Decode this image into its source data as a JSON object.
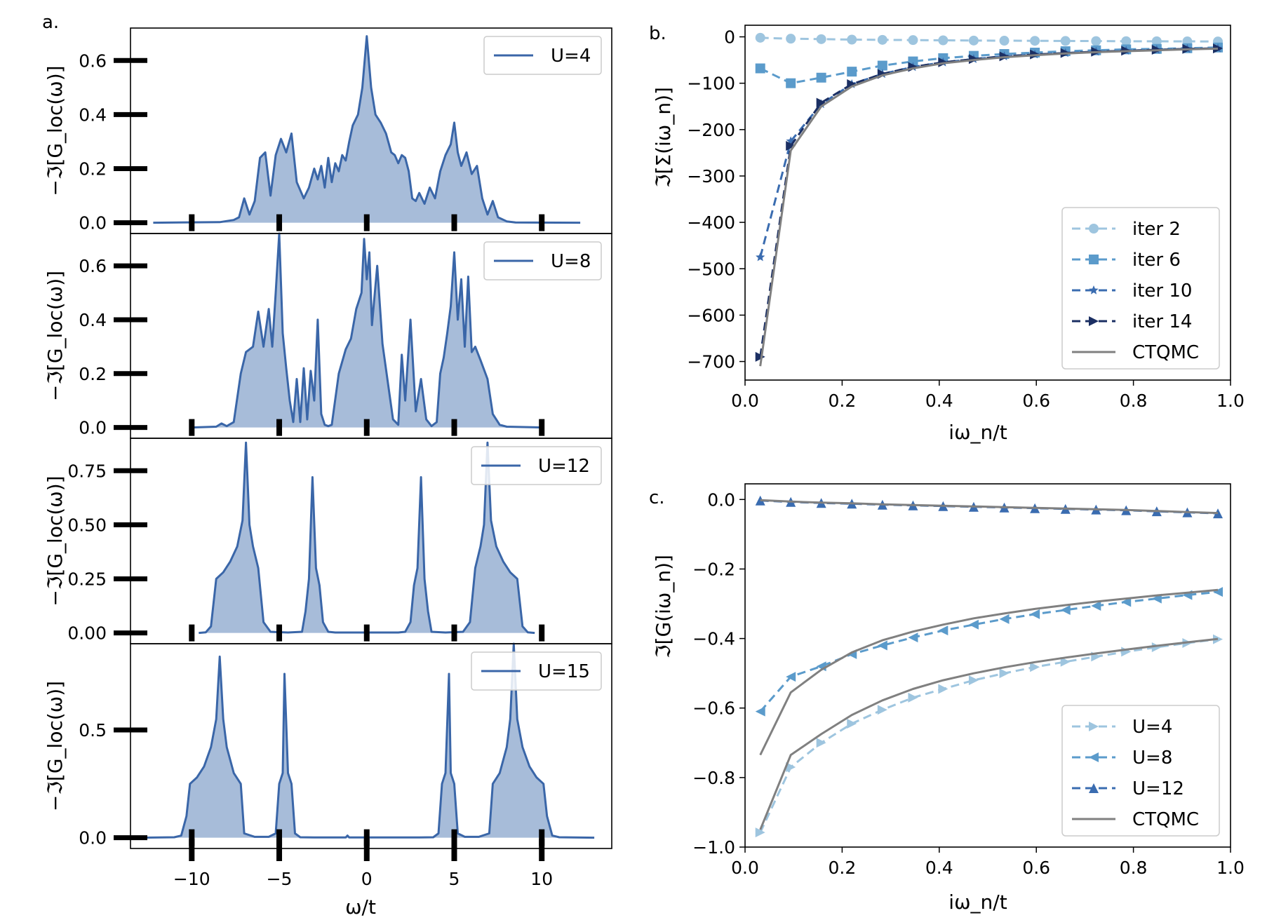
{
  "colors": {
    "dos_line": "#3a66a8",
    "dos_fill": "#a7bcd9",
    "iter2": "#9ec5df",
    "iter6": "#5b9bcb",
    "iter10": "#3a6cb0",
    "iter14": "#1b2f63",
    "ctqmc": "#808080",
    "g_u4": "#9ec5df",
    "g_u8": "#5b9bcb",
    "g_u12": "#3a6cb0"
  },
  "panel_a": {
    "letter": "a.",
    "xlabel": "ω/t",
    "ylabel": "−ℑ[G_loc(ω)]",
    "xticks": [
      "−10",
      "−5",
      "0",
      "5",
      "10"
    ]
  },
  "panel_b": {
    "letter": "b.",
    "xlabel": "iω_n/t",
    "ylabel": "ℑ[Σ(iω_n)]",
    "xticks": [
      "0.0",
      "0.2",
      "0.4",
      "0.6",
      "0.8",
      "1.0"
    ],
    "yticks": [
      "0",
      "−100",
      "−200",
      "−300",
      "−400",
      "−500",
      "−600",
      "−700"
    ],
    "legend": [
      "iter 2",
      "iter 6",
      "iter 10",
      "iter 14",
      "CTQMC"
    ]
  },
  "panel_c": {
    "letter": "c.",
    "xlabel": "iω_n/t",
    "ylabel": "ℑ[G(iω_n)]",
    "xticks": [
      "0.0",
      "0.2",
      "0.4",
      "0.6",
      "0.8",
      "1.0"
    ],
    "yticks": [
      "0.0",
      "−0.2",
      "−0.4",
      "−0.6",
      "−0.8",
      "−1.0"
    ],
    "legend": [
      "U=4",
      "U=8",
      "U=12",
      "CTQMC"
    ]
  },
  "chart_data": [
    {
      "type": "area",
      "panel": "a1",
      "legend": "U=4",
      "xlim": [
        -13.5,
        14
      ],
      "ylim": [
        -0.04,
        0.72
      ],
      "yticks": [
        "0.0",
        "0.2",
        "0.4",
        "0.6"
      ],
      "ytick_values": [
        0,
        0.2,
        0.4,
        0.6
      ],
      "x": [
        -12.2,
        -8.4,
        -7.6,
        -7.3,
        -7.0,
        -6.7,
        -6.4,
        -6.1,
        -5.8,
        -5.5,
        -5.2,
        -4.9,
        -4.6,
        -4.3,
        -4.0,
        -3.6,
        -3.3,
        -3.0,
        -2.8,
        -2.6,
        -2.4,
        -2.2,
        -2.0,
        -1.8,
        -1.6,
        -1.4,
        -1.2,
        -1.0,
        -0.8,
        -0.5,
        -0.25,
        0,
        0.25,
        0.5,
        0.8,
        1.1,
        1.4,
        1.6,
        1.8,
        2.0,
        2.2,
        2.4,
        2.6,
        2.8,
        3.0,
        3.3,
        3.6,
        3.9,
        4.2,
        4.5,
        4.8,
        5.0,
        5.2,
        5.4,
        5.7,
        6.0,
        6.3,
        6.6,
        6.9,
        7.2,
        7.5,
        8.0,
        8.5,
        12.2
      ],
      "y": [
        0,
        0.002,
        0.01,
        0.02,
        0.09,
        0.03,
        0.08,
        0.24,
        0.26,
        0.1,
        0.25,
        0.31,
        0.26,
        0.33,
        0.15,
        0.09,
        0.13,
        0.2,
        0.16,
        0.21,
        0.13,
        0.24,
        0.15,
        0.22,
        0.19,
        0.25,
        0.23,
        0.3,
        0.36,
        0.4,
        0.5,
        0.69,
        0.5,
        0.4,
        0.37,
        0.33,
        0.26,
        0.25,
        0.22,
        0.25,
        0.24,
        0.19,
        0.09,
        0.08,
        0.11,
        0.07,
        0.13,
        0.09,
        0.19,
        0.25,
        0.29,
        0.37,
        0.26,
        0.21,
        0.26,
        0.18,
        0.21,
        0.09,
        0.03,
        0.08,
        0.02,
        0.005,
        0.001,
        0
      ]
    },
    {
      "type": "area",
      "panel": "a2",
      "legend": "U=8",
      "xlim": [
        -13.5,
        14
      ],
      "ylim": [
        -0.04,
        0.72
      ],
      "yticks": [
        "0.0",
        "0.2",
        "0.4",
        "0.6"
      ],
      "ytick_values": [
        0,
        0.2,
        0.4,
        0.6
      ],
      "x": [
        -10.0,
        -8.6,
        -8.3,
        -8.0,
        -7.6,
        -7.2,
        -6.9,
        -6.5,
        -6.2,
        -5.9,
        -5.6,
        -5.4,
        -5.2,
        -5.0,
        -4.8,
        -4.6,
        -4.4,
        -4.2,
        -4.0,
        -3.8,
        -3.6,
        -3.4,
        -3.2,
        -3.0,
        -2.8,
        -2.6,
        -2.4,
        -2.2,
        -2.0,
        -1.6,
        -1.2,
        -0.9,
        -0.6,
        -0.3,
        -0.15,
        0,
        0.15,
        0.3,
        0.6,
        0.9,
        1.2,
        1.5,
        1.8,
        2.0,
        2.2,
        2.5,
        2.8,
        3.1,
        3.4,
        3.7,
        4.0,
        4.2,
        4.4,
        4.6,
        4.8,
        5.0,
        5.2,
        5.4,
        5.6,
        5.8,
        6.0,
        6.2,
        6.5,
        6.9,
        7.2,
        7.6,
        8.0,
        10.0
      ],
      "y": [
        0,
        0.003,
        0.015,
        0.005,
        0.02,
        0.2,
        0.28,
        0.3,
        0.43,
        0.3,
        0.44,
        0.3,
        0.5,
        0.72,
        0.35,
        0.22,
        0.1,
        0.02,
        0.18,
        0.02,
        0.22,
        0.03,
        0.21,
        0.1,
        0.4,
        0.05,
        0.01,
        0.005,
        0.01,
        0.2,
        0.29,
        0.33,
        0.44,
        0.5,
        0.7,
        0.55,
        0.65,
        0.38,
        0.6,
        0.31,
        0.17,
        0.03,
        0.01,
        0.27,
        0.1,
        0.4,
        0.06,
        0.18,
        0.03,
        0.005,
        0.02,
        0.2,
        0.26,
        0.35,
        0.45,
        0.65,
        0.4,
        0.55,
        0.3,
        0.56,
        0.28,
        0.3,
        0.25,
        0.18,
        0.05,
        0.01,
        0.003,
        0
      ]
    },
    {
      "type": "area",
      "panel": "a3",
      "legend": "U=12",
      "xlim": [
        -13.5,
        14
      ],
      "ylim": [
        -0.05,
        0.9
      ],
      "yticks": [
        "0.00",
        "0.25",
        "0.50",
        "0.75"
      ],
      "ytick_values": [
        0,
        0.25,
        0.5,
        0.75
      ],
      "x": [
        -9.6,
        -9.2,
        -8.9,
        -8.6,
        -8.2,
        -7.8,
        -7.4,
        -7.1,
        -6.9,
        -6.7,
        -6.5,
        -6.2,
        -5.9,
        -5.5,
        -4.5,
        -3.7,
        -3.5,
        -3.3,
        -3.1,
        -2.9,
        -2.7,
        -2.5,
        -2.2,
        -1.8,
        1.8,
        2.2,
        2.5,
        2.7,
        2.9,
        3.1,
        3.3,
        3.5,
        3.7,
        4.5,
        5.5,
        5.9,
        6.2,
        6.5,
        6.7,
        6.9,
        7.1,
        7.4,
        7.8,
        8.2,
        8.6,
        8.9,
        9.2,
        9.6
      ],
      "y": [
        0,
        0.003,
        0.03,
        0.25,
        0.28,
        0.33,
        0.4,
        0.52,
        0.88,
        0.5,
        0.4,
        0.3,
        0.05,
        0.005,
        0.002,
        0.005,
        0.1,
        0.25,
        0.72,
        0.3,
        0.22,
        0.05,
        0.005,
        0.002,
        0.002,
        0.005,
        0.05,
        0.22,
        0.3,
        0.72,
        0.25,
        0.1,
        0.005,
        0.002,
        0.005,
        0.05,
        0.3,
        0.4,
        0.5,
        0.88,
        0.52,
        0.4,
        0.33,
        0.28,
        0.25,
        0.03,
        0.003,
        0
      ]
    },
    {
      "type": "area",
      "panel": "a4",
      "legend": "U=15",
      "xlim": [
        -13.5,
        14
      ],
      "ylim": [
        -0.05,
        0.9
      ],
      "yticks": [
        "0.0",
        "0.5"
      ],
      "ytick_values": [
        0,
        0.5
      ],
      "x": [
        -13.0,
        -11.0,
        -10.6,
        -10.3,
        -10.1,
        -9.7,
        -9.3,
        -8.9,
        -8.6,
        -8.4,
        -8.2,
        -8.0,
        -7.6,
        -7.2,
        -7.0,
        -6.4,
        -5.6,
        -5.2,
        -5.0,
        -4.8,
        -4.7,
        -4.5,
        -4.3,
        -4.1,
        -3.8,
        -3.0,
        -1.2,
        -1.1,
        -1.0,
        3.0,
        3.8,
        4.1,
        4.3,
        4.5,
        4.7,
        4.8,
        5.0,
        5.2,
        5.6,
        6.4,
        7.0,
        7.2,
        7.6,
        8.0,
        8.2,
        8.4,
        8.6,
        8.9,
        9.3,
        9.7,
        10.1,
        10.3,
        10.6,
        11.0,
        13.0
      ],
      "y": [
        0,
        0.002,
        0.01,
        0.1,
        0.25,
        0.28,
        0.33,
        0.42,
        0.55,
        0.84,
        0.55,
        0.42,
        0.3,
        0.25,
        0.02,
        0.004,
        0.004,
        0.02,
        0.25,
        0.3,
        0.76,
        0.3,
        0.25,
        0.02,
        0.002,
        0.001,
        0.001,
        0.01,
        0.001,
        0.001,
        0.002,
        0.02,
        0.25,
        0.3,
        0.76,
        0.3,
        0.25,
        0.02,
        0.004,
        0.004,
        0.02,
        0.25,
        0.3,
        0.42,
        0.55,
        0.9,
        0.55,
        0.42,
        0.33,
        0.28,
        0.25,
        0.1,
        0.01,
        0.002,
        0
      ]
    },
    {
      "type": "line",
      "panel": "b",
      "xlabel": "iω_n/t",
      "ylabel": "ℑ[Σ(iω_n)]",
      "xlim": [
        0,
        1
      ],
      "ylim": [
        -740,
        25
      ],
      "x": [
        0.0314,
        0.0942,
        0.157,
        0.22,
        0.283,
        0.346,
        0.408,
        0.471,
        0.534,
        0.597,
        0.66,
        0.723,
        0.785,
        0.848,
        0.911,
        0.974
      ],
      "series": [
        {
          "name": "iter 2",
          "marker": "circle",
          "values": [
            -2,
            -4,
            -5,
            -6,
            -6.5,
            -7,
            -7.5,
            -8,
            -8.3,
            -8.6,
            -8.9,
            -9.2,
            -9.4,
            -9.6,
            -9.8,
            -10
          ]
        },
        {
          "name": "iter 6",
          "marker": "square",
          "values": [
            -68,
            -100,
            -88,
            -75,
            -62,
            -53,
            -46,
            -41,
            -37,
            -34,
            -31,
            -29,
            -27,
            -26,
            -24.5,
            -23
          ]
        },
        {
          "name": "iter 10",
          "marker": "star",
          "values": [
            -475,
            -225,
            -145,
            -102,
            -80,
            -65,
            -55,
            -48,
            -42,
            -38,
            -35,
            -32,
            -30,
            -28,
            -26,
            -25
          ]
        },
        {
          "name": "iter 14",
          "marker": "triangle-right",
          "values": [
            -690,
            -235,
            -142,
            -102,
            -80,
            -65,
            -55,
            -48,
            -42,
            -38,
            -35,
            -32,
            -30,
            -28,
            -26,
            -25
          ]
        },
        {
          "name": "CTQMC",
          "marker": "none",
          "values": [
            -710,
            -245,
            -150,
            -107,
            -83,
            -68,
            -57,
            -50,
            -44,
            -39.5,
            -36,
            -33,
            -31,
            -29,
            -27,
            -25.5
          ]
        }
      ]
    },
    {
      "type": "line",
      "panel": "c",
      "xlabel": "iω_n/t",
      "ylabel": "ℑ[G(iω_n)]",
      "xlim": [
        0,
        1
      ],
      "ylim": [
        -1.0,
        0.045
      ],
      "x": [
        0.0314,
        0.0942,
        0.157,
        0.22,
        0.283,
        0.346,
        0.408,
        0.471,
        0.534,
        0.597,
        0.66,
        0.723,
        0.785,
        0.848,
        0.911,
        0.974
      ],
      "series": [
        {
          "name": "U=4",
          "marker": "triangle-right",
          "values": [
            -0.958,
            -0.77,
            -0.7,
            -0.645,
            -0.605,
            -0.57,
            -0.545,
            -0.52,
            -0.5,
            -0.482,
            -0.467,
            -0.452,
            -0.438,
            -0.425,
            -0.413,
            -0.402
          ]
        },
        {
          "name": "U=8",
          "marker": "triangle-left",
          "values": [
            -0.61,
            -0.51,
            -0.48,
            -0.445,
            -0.42,
            -0.397,
            -0.377,
            -0.36,
            -0.344,
            -0.33,
            -0.318,
            -0.306,
            -0.295,
            -0.285,
            -0.275,
            -0.266
          ]
        },
        {
          "name": "U=12",
          "marker": "triangle-up",
          "values": [
            -0.003,
            -0.007,
            -0.01,
            -0.012,
            -0.015,
            -0.017,
            -0.019,
            -0.021,
            -0.023,
            -0.025,
            -0.027,
            -0.029,
            -0.031,
            -0.034,
            -0.037,
            -0.04
          ]
        },
        {
          "name": "CTQMC",
          "marker": "none",
          "values": [
            -0.95,
            -0.735,
            -0.675,
            -0.62,
            -0.578,
            -0.545,
            -0.52,
            -0.5,
            -0.483,
            -0.468,
            -0.455,
            -0.443,
            -0.432,
            -0.421,
            -0.411,
            -0.401
          ]
        },
        {
          "name": "CTQMC",
          "marker": "none",
          "values": [
            -0.735,
            -0.555,
            -0.49,
            -0.44,
            -0.405,
            -0.38,
            -0.36,
            -0.342,
            -0.328,
            -0.315,
            -0.304,
            -0.294,
            -0.285,
            -0.276,
            -0.268,
            -0.26
          ]
        },
        {
          "name": "CTQMC",
          "marker": "none",
          "values": [
            -0.002,
            -0.006,
            -0.009,
            -0.011,
            -0.014,
            -0.016,
            -0.018,
            -0.02,
            -0.022,
            -0.024,
            -0.026,
            -0.028,
            -0.03,
            -0.033,
            -0.036,
            -0.039
          ]
        }
      ]
    }
  ]
}
